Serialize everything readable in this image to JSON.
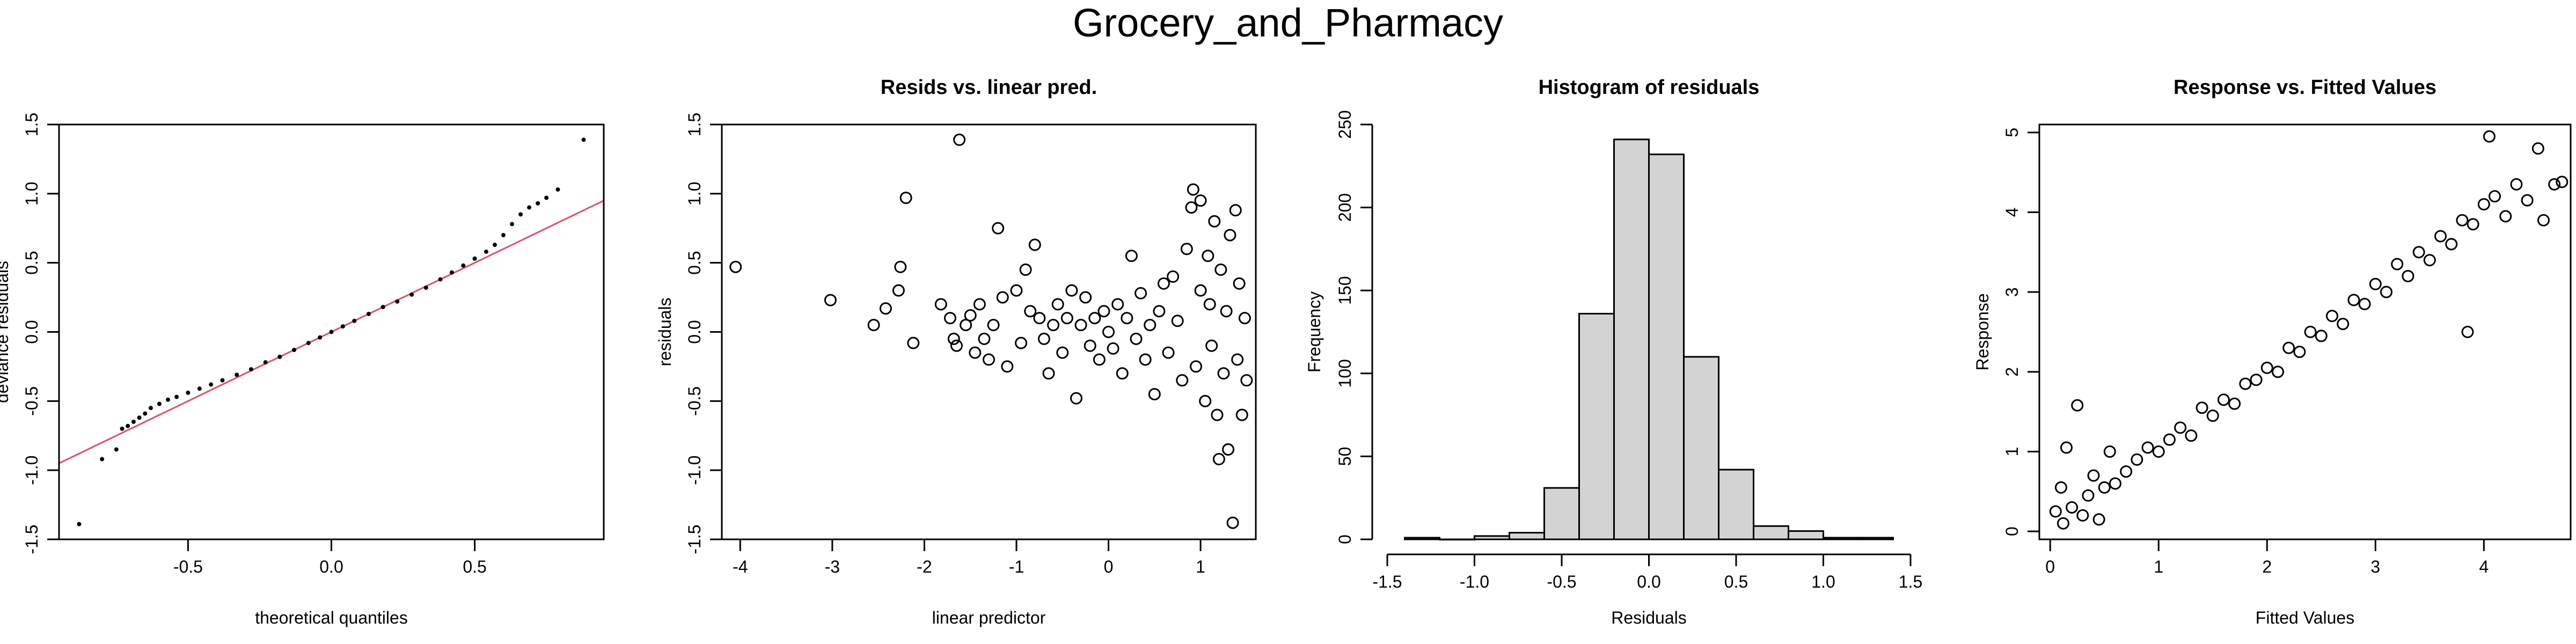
{
  "suptitle": "Grocery_and_Pharmacy",
  "colors": {
    "axes": "#000000",
    "qqline": "#DF536B",
    "hist_fill": "#D3D3D3",
    "points": "#000000"
  },
  "chart_data": [
    {
      "id": "qq",
      "type": "scatter",
      "title": "",
      "xlabel": "theoretical quantiles",
      "ylabel": "deviance residuals",
      "xlim": [
        -0.95,
        0.95
      ],
      "ylim": [
        -1.5,
        1.5
      ],
      "xticks": [
        -0.5,
        0.0,
        0.5
      ],
      "xtick_labels": [
        "-0.5",
        "0.0",
        "0.5"
      ],
      "yticks": [
        -1.5,
        -1.0,
        -0.5,
        0.0,
        0.5,
        1.0,
        1.5
      ],
      "ytick_labels": [
        "-1.5",
        "-1.0",
        "-0.5",
        "0.0",
        "0.5",
        "1.0",
        "1.5"
      ],
      "reference_line": {
        "intercept": 0.0,
        "slope": 1.0
      },
      "points": [
        [
          -0.88,
          -1.39
        ],
        [
          -0.8,
          -0.92
        ],
        [
          -0.75,
          -0.85
        ],
        [
          -0.73,
          -0.7
        ],
        [
          -0.71,
          -0.68
        ],
        [
          -0.69,
          -0.65
        ],
        [
          -0.67,
          -0.62
        ],
        [
          -0.65,
          -0.59
        ],
        [
          -0.63,
          -0.55
        ],
        [
          -0.6,
          -0.52
        ],
        [
          -0.57,
          -0.49
        ],
        [
          -0.54,
          -0.47
        ],
        [
          -0.5,
          -0.44
        ],
        [
          -0.46,
          -0.41
        ],
        [
          -0.42,
          -0.38
        ],
        [
          -0.38,
          -0.35
        ],
        [
          -0.33,
          -0.31
        ],
        [
          -0.28,
          -0.27
        ],
        [
          -0.23,
          -0.22
        ],
        [
          -0.18,
          -0.18
        ],
        [
          -0.13,
          -0.13
        ],
        [
          -0.08,
          -0.08
        ],
        [
          -0.04,
          -0.04
        ],
        [
          0.0,
          0.0
        ],
        [
          0.04,
          0.04
        ],
        [
          0.08,
          0.08
        ],
        [
          0.13,
          0.13
        ],
        [
          0.18,
          0.18
        ],
        [
          0.23,
          0.22
        ],
        [
          0.28,
          0.27
        ],
        [
          0.33,
          0.32
        ],
        [
          0.38,
          0.38
        ],
        [
          0.42,
          0.43
        ],
        [
          0.46,
          0.48
        ],
        [
          0.5,
          0.53
        ],
        [
          0.54,
          0.58
        ],
        [
          0.57,
          0.63
        ],
        [
          0.6,
          0.7
        ],
        [
          0.63,
          0.78
        ],
        [
          0.66,
          0.85
        ],
        [
          0.69,
          0.9
        ],
        [
          0.72,
          0.93
        ],
        [
          0.75,
          0.97
        ],
        [
          0.79,
          1.03
        ],
        [
          0.88,
          1.39
        ]
      ]
    },
    {
      "id": "resid",
      "type": "scatter",
      "title": "Resids vs. linear pred.",
      "xlabel": "linear predictor",
      "ylabel": "residuals",
      "xlim": [
        -4.2,
        1.6
      ],
      "ylim": [
        -1.5,
        1.5
      ],
      "xticks": [
        -4,
        -3,
        -2,
        -1,
        0,
        1
      ],
      "xtick_labels": [
        "-4",
        "-3",
        "-2",
        "-1",
        "0",
        "1"
      ],
      "yticks": [
        -1.5,
        -1.0,
        -0.5,
        0.0,
        0.5,
        1.0,
        1.5
      ],
      "ytick_labels": [
        "-1.5",
        "-1.0",
        "-0.5",
        "0.0",
        "0.5",
        "1.0",
        "1.5"
      ],
      "points": [
        [
          -4.05,
          0.47
        ],
        [
          -3.02,
          0.23
        ],
        [
          -2.55,
          0.05
        ],
        [
          -2.42,
          0.17
        ],
        [
          -2.28,
          0.3
        ],
        [
          -2.26,
          0.47
        ],
        [
          -2.2,
          0.97
        ],
        [
          -2.12,
          -0.08
        ],
        [
          -1.82,
          0.2
        ],
        [
          -1.72,
          0.1
        ],
        [
          -1.68,
          -0.05
        ],
        [
          -1.65,
          -0.1
        ],
        [
          -1.62,
          1.39
        ],
        [
          -1.55,
          0.05
        ],
        [
          -1.5,
          0.12
        ],
        [
          -1.45,
          -0.15
        ],
        [
          -1.4,
          0.2
        ],
        [
          -1.35,
          -0.05
        ],
        [
          -1.3,
          -0.2
        ],
        [
          -1.25,
          0.05
        ],
        [
          -1.2,
          0.75
        ],
        [
          -1.15,
          0.25
        ],
        [
          -1.1,
          -0.25
        ],
        [
          -1.0,
          0.3
        ],
        [
          -0.95,
          -0.08
        ],
        [
          -0.9,
          0.45
        ],
        [
          -0.85,
          0.15
        ],
        [
          -0.8,
          0.63
        ],
        [
          -0.75,
          0.1
        ],
        [
          -0.7,
          -0.05
        ],
        [
          -0.65,
          -0.3
        ],
        [
          -0.6,
          0.05
        ],
        [
          -0.55,
          0.2
        ],
        [
          -0.5,
          -0.15
        ],
        [
          -0.45,
          0.1
        ],
        [
          -0.4,
          0.3
        ],
        [
          -0.35,
          -0.48
        ],
        [
          -0.3,
          0.05
        ],
        [
          -0.25,
          0.25
        ],
        [
          -0.2,
          -0.1
        ],
        [
          -0.15,
          0.1
        ],
        [
          -0.1,
          -0.2
        ],
        [
          -0.05,
          0.15
        ],
        [
          0.0,
          0.0
        ],
        [
          0.05,
          -0.12
        ],
        [
          0.1,
          0.2
        ],
        [
          0.15,
          -0.3
        ],
        [
          0.2,
          0.1
        ],
        [
          0.25,
          0.55
        ],
        [
          0.3,
          -0.05
        ],
        [
          0.35,
          0.28
        ],
        [
          0.4,
          -0.2
        ],
        [
          0.45,
          0.05
        ],
        [
          0.5,
          -0.45
        ],
        [
          0.55,
          0.15
        ],
        [
          0.6,
          0.35
        ],
        [
          0.65,
          -0.15
        ],
        [
          0.7,
          0.4
        ],
        [
          0.75,
          0.08
        ],
        [
          0.8,
          -0.35
        ],
        [
          0.85,
          0.6
        ],
        [
          0.9,
          0.9
        ],
        [
          0.92,
          1.03
        ],
        [
          0.95,
          -0.25
        ],
        [
          1.0,
          0.3
        ],
        [
          1.0,
          0.95
        ],
        [
          1.05,
          -0.5
        ],
        [
          1.08,
          0.55
        ],
        [
          1.1,
          0.2
        ],
        [
          1.12,
          -0.1
        ],
        [
          1.15,
          0.8
        ],
        [
          1.18,
          -0.6
        ],
        [
          1.2,
          -0.92
        ],
        [
          1.22,
          0.45
        ],
        [
          1.25,
          -0.3
        ],
        [
          1.28,
          0.15
        ],
        [
          1.3,
          -0.85
        ],
        [
          1.32,
          0.7
        ],
        [
          1.35,
          -1.38
        ],
        [
          1.38,
          0.88
        ],
        [
          1.4,
          -0.2
        ],
        [
          1.42,
          0.35
        ],
        [
          1.45,
          -0.6
        ],
        [
          1.48,
          0.1
        ],
        [
          1.5,
          -0.35
        ]
      ]
    },
    {
      "id": "hist",
      "type": "bar",
      "title": "Histogram of residuals",
      "xlabel": "Residuals",
      "ylabel": "Frequency",
      "xlim": [
        -1.5,
        1.5
      ],
      "ylim": [
        0,
        250
      ],
      "xticks": [
        -1.5,
        -1.0,
        -0.5,
        0.0,
        0.5,
        1.0,
        1.5
      ],
      "xtick_labels": [
        "-1.5",
        "-1.0",
        "-0.5",
        "0.0",
        "0.5",
        "1.0",
        "1.5"
      ],
      "yticks": [
        0,
        50,
        100,
        150,
        200,
        250
      ],
      "ytick_labels": [
        "0",
        "50",
        "100",
        "150",
        "200",
        "250"
      ],
      "bin_edges": [
        -1.4,
        -1.2,
        -1.0,
        -0.8,
        -0.6,
        -0.4,
        -0.2,
        0.0,
        0.2,
        0.4,
        0.6,
        0.8,
        1.0,
        1.2,
        1.4
      ],
      "values": [
        1,
        0,
        2,
        4,
        31,
        136,
        241,
        232,
        110,
        42,
        8,
        5,
        1,
        1
      ]
    },
    {
      "id": "fitted",
      "type": "scatter",
      "title": "Response vs. Fitted Values",
      "xlabel": "Fitted Values",
      "ylabel": "Response",
      "xlim": [
        -0.1,
        4.8
      ],
      "ylim": [
        -0.1,
        5.1
      ],
      "xticks": [
        0,
        1,
        2,
        3,
        4
      ],
      "xtick_labels": [
        "0",
        "1",
        "2",
        "3",
        "4"
      ],
      "yticks": [
        0,
        1,
        2,
        3,
        4,
        5
      ],
      "ytick_labels": [
        "0",
        "1",
        "2",
        "3",
        "4",
        "5"
      ],
      "points": [
        [
          0.05,
          0.25
        ],
        [
          0.1,
          0.55
        ],
        [
          0.12,
          0.1
        ],
        [
          0.15,
          1.05
        ],
        [
          0.2,
          0.3
        ],
        [
          0.25,
          1.58
        ],
        [
          0.3,
          0.2
        ],
        [
          0.35,
          0.45
        ],
        [
          0.4,
          0.7
        ],
        [
          0.45,
          0.15
        ],
        [
          0.5,
          0.55
        ],
        [
          0.55,
          1.0
        ],
        [
          0.6,
          0.6
        ],
        [
          0.7,
          0.75
        ],
        [
          0.8,
          0.9
        ],
        [
          0.9,
          1.05
        ],
        [
          1.0,
          1.0
        ],
        [
          1.1,
          1.15
        ],
        [
          1.2,
          1.3
        ],
        [
          1.3,
          1.2
        ],
        [
          1.4,
          1.55
        ],
        [
          1.5,
          1.45
        ],
        [
          1.6,
          1.65
        ],
        [
          1.7,
          1.6
        ],
        [
          1.8,
          1.85
        ],
        [
          1.9,
          1.9
        ],
        [
          2.0,
          2.05
        ],
        [
          2.1,
          2.0
        ],
        [
          2.2,
          2.3
        ],
        [
          2.3,
          2.25
        ],
        [
          2.4,
          2.5
        ],
        [
          2.5,
          2.45
        ],
        [
          2.6,
          2.7
        ],
        [
          2.7,
          2.6
        ],
        [
          2.8,
          2.9
        ],
        [
          2.9,
          2.85
        ],
        [
          3.0,
          3.1
        ],
        [
          3.1,
          3.0
        ],
        [
          3.2,
          3.35
        ],
        [
          3.3,
          3.2
        ],
        [
          3.4,
          3.5
        ],
        [
          3.5,
          3.4
        ],
        [
          3.6,
          3.7
        ],
        [
          3.7,
          3.6
        ],
        [
          3.8,
          3.9
        ],
        [
          3.85,
          2.5
        ],
        [
          3.9,
          3.85
        ],
        [
          4.0,
          4.1
        ],
        [
          4.05,
          4.95
        ],
        [
          4.1,
          4.2
        ],
        [
          4.2,
          3.95
        ],
        [
          4.3,
          4.35
        ],
        [
          4.4,
          4.15
        ],
        [
          4.5,
          4.8
        ],
        [
          4.55,
          3.9
        ],
        [
          4.65,
          4.35
        ],
        [
          4.72,
          4.38
        ]
      ]
    }
  ]
}
